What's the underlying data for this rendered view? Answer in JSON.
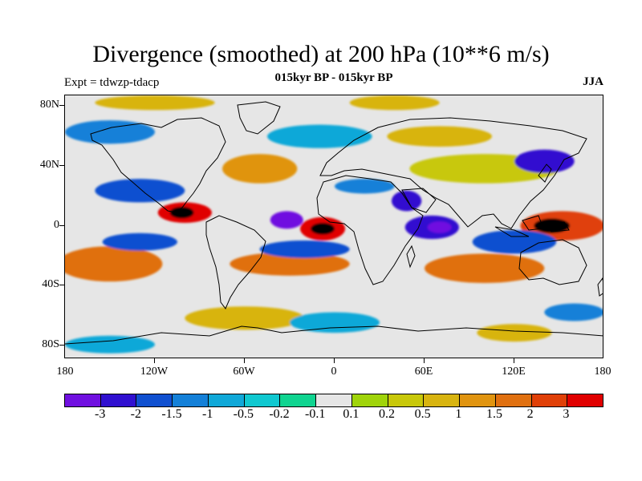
{
  "header": {
    "title": "Divergence (smoothed) at 200 hPa (10**6 m/s)",
    "subtitle": "015kyr BP - 015kyr BP",
    "experiment": "Expt = tdwzp-tdacp",
    "season": "JJA"
  },
  "map": {
    "field": "200 hPa divergence difference",
    "lat_ticks": [
      "80N",
      "40N",
      "0",
      "40S",
      "80S"
    ],
    "lon_ticks": [
      "180",
      "120W",
      "60W",
      "0",
      "60E",
      "120E",
      "180"
    ],
    "anomalies": [
      {
        "lon": -8,
        "lat": -1,
        "rlon": 15,
        "rlat": 8,
        "level": 14
      },
      {
        "lon": -8,
        "lat": -1,
        "rlon": 8,
        "rlat": 4,
        "level": 15
      },
      {
        "lon": 152,
        "lat": 1,
        "rlon": 28,
        "rlat": 10,
        "level": 13
      },
      {
        "lon": 145,
        "lat": 1,
        "rlon": 12,
        "rlat": 5,
        "level": 15
      },
      {
        "lon": -100,
        "lat": 10,
        "rlon": 18,
        "rlat": 7,
        "level": 14
      },
      {
        "lon": -102,
        "lat": 10,
        "rlon": 8,
        "rlat": 4,
        "level": 15
      },
      {
        "lon": 65,
        "lat": 0,
        "rlon": 18,
        "rlat": 8,
        "level": 1
      },
      {
        "lon": 70,
        "lat": 0,
        "rlon": 8,
        "rlat": 4,
        "level": 0
      },
      {
        "lon": -32,
        "lat": 5,
        "rlon": 11,
        "rlat": 6,
        "level": 0
      },
      {
        "lon": 48,
        "lat": 18,
        "rlon": 10,
        "rlat": 7,
        "level": 1
      },
      {
        "lon": 100,
        "lat": 40,
        "rlon": 50,
        "rlat": 10,
        "level": 9
      },
      {
        "lon": -50,
        "lat": 40,
        "rlon": 25,
        "rlat": 10,
        "level": 11
      },
      {
        "lon": -150,
        "lat": -25,
        "rlon": 35,
        "rlat": 12,
        "level": 12
      },
      {
        "lon": -30,
        "lat": -25,
        "rlon": 40,
        "rlat": 8,
        "level": 12
      },
      {
        "lon": 100,
        "lat": -28,
        "rlon": 40,
        "rlat": 10,
        "level": 12
      },
      {
        "lon": -60,
        "lat": -62,
        "rlon": 40,
        "rlat": 8,
        "level": 10
      },
      {
        "lon": -130,
        "lat": 25,
        "rlon": 30,
        "rlat": 8,
        "level": 2
      },
      {
        "lon": -130,
        "lat": -10,
        "rlon": 25,
        "rlat": 6,
        "level": 2
      },
      {
        "lon": 140,
        "lat": 45,
        "rlon": 20,
        "rlat": 8,
        "level": 1
      },
      {
        "lon": 120,
        "lat": -10,
        "rlon": 28,
        "rlat": 8,
        "level": 2
      },
      {
        "lon": 20,
        "lat": 28,
        "rlon": 20,
        "rlat": 5,
        "level": 3
      },
      {
        "lon": -20,
        "lat": -15,
        "rlon": 30,
        "rlat": 6,
        "level": 2
      },
      {
        "lon": -10,
        "lat": 62,
        "rlon": 35,
        "rlat": 8,
        "level": 4
      },
      {
        "lon": 70,
        "lat": 62,
        "rlon": 35,
        "rlat": 7,
        "level": 10
      },
      {
        "lon": -150,
        "lat": 65,
        "rlon": 30,
        "rlat": 8,
        "level": 3
      },
      {
        "lon": 160,
        "lat": -58,
        "rlon": 20,
        "rlat": 6,
        "level": 3
      },
      {
        "lon": 0,
        "lat": -65,
        "rlon": 30,
        "rlat": 7,
        "level": 4
      },
      {
        "lon": 120,
        "lat": -72,
        "rlon": 25,
        "rlat": 6,
        "level": 10
      },
      {
        "lon": -120,
        "lat": 85,
        "rlon": 40,
        "rlat": 5,
        "level": 10
      },
      {
        "lon": 40,
        "lat": 85,
        "rlon": 30,
        "rlat": 5,
        "level": 10
      },
      {
        "lon": -150,
        "lat": -80,
        "rlon": 30,
        "rlat": 6,
        "level": 4
      }
    ]
  },
  "colorbar": {
    "colors": [
      "#7010e0",
      "#3010d0",
      "#1050d0",
      "#1480d8",
      "#10a8d8",
      "#10c8d0",
      "#10d490",
      "#e6e6e6",
      "#a0d40a",
      "#c8c80a",
      "#d8b410",
      "#e09410",
      "#e07010",
      "#e04008",
      "#e00000"
    ],
    "labels": [
      "-3",
      "-2",
      "-1.5",
      "-1",
      "-0.5",
      "-0.2",
      "-0.1",
      "0.1",
      "0.2",
      "0.5",
      "1",
      "1.5",
      "2",
      "3"
    ]
  }
}
